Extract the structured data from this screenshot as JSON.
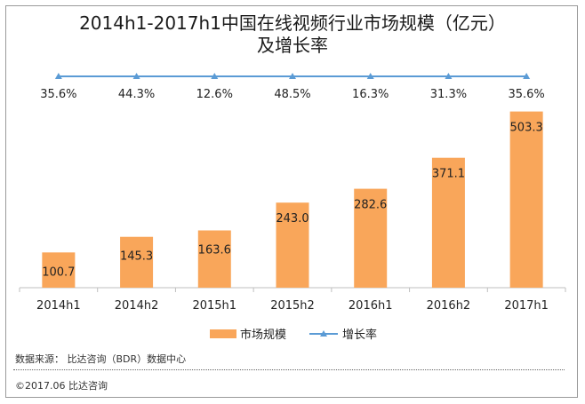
{
  "title_line1": "2014h1-2017h1中国在线视频行业市场规模（亿元）",
  "title_line2": "及增长率",
  "source": "数据来源： 比达咨询（BDR）数据中心",
  "copyright": "©2017.06 比达咨询",
  "colors": {
    "bar": "#F9A65A",
    "line": "#5B9BD5",
    "axis": "#BFBFBF",
    "text": "#222222"
  },
  "chart_data": {
    "type": "bar",
    "categories": [
      "2014h1",
      "2014h2",
      "2015h1",
      "2015h2",
      "2016h1",
      "2016h2",
      "2017h1"
    ],
    "series": [
      {
        "name": "市场规模",
        "type": "bar",
        "values": [
          100.7,
          145.3,
          163.6,
          243.0,
          282.6,
          371.1,
          503.3
        ],
        "labels": [
          "100.7",
          "145.3",
          "163.6",
          "243.0",
          "282.6",
          "371.1",
          "503.3"
        ]
      },
      {
        "name": "增长率",
        "type": "line",
        "values": [
          35.6,
          44.3,
          12.6,
          48.5,
          16.3,
          31.3,
          35.6
        ],
        "labels": [
          "35.6%",
          "44.3%",
          "12.6%",
          "48.5%",
          "16.3%",
          "31.3%",
          "35.6%"
        ]
      }
    ],
    "ylim": [
      0,
      520
    ],
    "legend_position": "bottom-center",
    "grid": false
  }
}
